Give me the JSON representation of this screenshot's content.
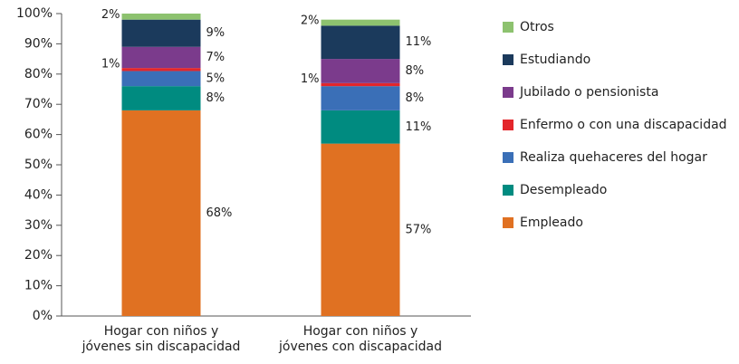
{
  "chart_data": {
    "type": "stacked_bar",
    "categories": [
      "Hogar con niños y jóvenes sin discapacidad",
      "Hogar con niños y jóvenes con discapacidad"
    ],
    "series": [
      {
        "name": "Empleado",
        "color": "#e07122",
        "values": [
          68,
          57
        ],
        "value_labels": [
          "68%",
          "57%"
        ]
      },
      {
        "name": "Desempleado",
        "color": "#008b80",
        "values": [
          8,
          11
        ],
        "value_labels": [
          "8%",
          "11%"
        ]
      },
      {
        "name": "Realiza quehaceres del hogar",
        "color": "#3a6fb7",
        "values": [
          5,
          8
        ],
        "value_labels": [
          "5%",
          "8%"
        ]
      },
      {
        "name": "Enfermo o con una discapacidad",
        "color": "#e3262b",
        "values": [
          1,
          1
        ],
        "value_labels": [
          "1%",
          "1%"
        ]
      },
      {
        "name": "Jubilado o pensionista",
        "color": "#7b3b8c",
        "values": [
          7,
          8
        ],
        "value_labels": [
          "7%",
          "8%"
        ]
      },
      {
        "name": "Estudiando",
        "color": "#1b3a5c",
        "values": [
          9,
          11
        ],
        "value_labels": [
          "9%",
          "11%"
        ]
      },
      {
        "name": "Otros",
        "color": "#8dc26f",
        "values": [
          2,
          2
        ],
        "value_labels": [
          "2%",
          "2%"
        ]
      }
    ],
    "ylim": [
      0,
      100
    ],
    "yticks": [
      {
        "value": 0,
        "label": "0%"
      },
      {
        "value": 10,
        "label": "10%"
      },
      {
        "value": 20,
        "label": "20%"
      },
      {
        "value": 30,
        "label": "30%"
      },
      {
        "value": 40,
        "label": "40%"
      },
      {
        "value": 50,
        "label": "50%"
      },
      {
        "value": 60,
        "label": "60%"
      },
      {
        "value": 70,
        "label": "70%"
      },
      {
        "value": 80,
        "label": "80%"
      },
      {
        "value": 90,
        "label": "90%"
      },
      {
        "value": 100,
        "label": "100%"
      }
    ],
    "legend": "right",
    "grid": false
  }
}
